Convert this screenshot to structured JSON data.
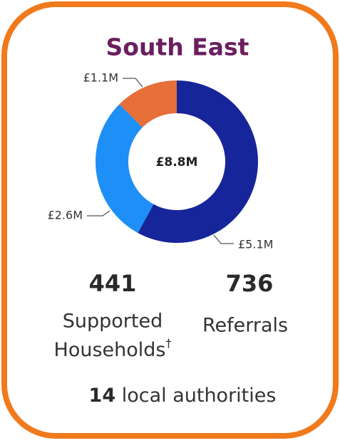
{
  "chart_data": {
    "type": "pie",
    "donut": true,
    "title": "South East",
    "values": [
      5.1,
      2.6,
      1.1
    ],
    "value_labels": [
      "£5.1M",
      "£2.6M",
      "£1.1M"
    ],
    "colors": [
      "#17259a",
      "#1e8ff7",
      "#e66f3a"
    ],
    "center_label": "£8.8M"
  },
  "stats": [
    {
      "value": "441",
      "label_lines": [
        "Supported",
        "Households"
      ],
      "note_mark": "†"
    },
    {
      "value": "736",
      "label_lines": [
        "Referrals"
      ]
    }
  ],
  "footer": {
    "value": "14",
    "text": "local authorities"
  }
}
